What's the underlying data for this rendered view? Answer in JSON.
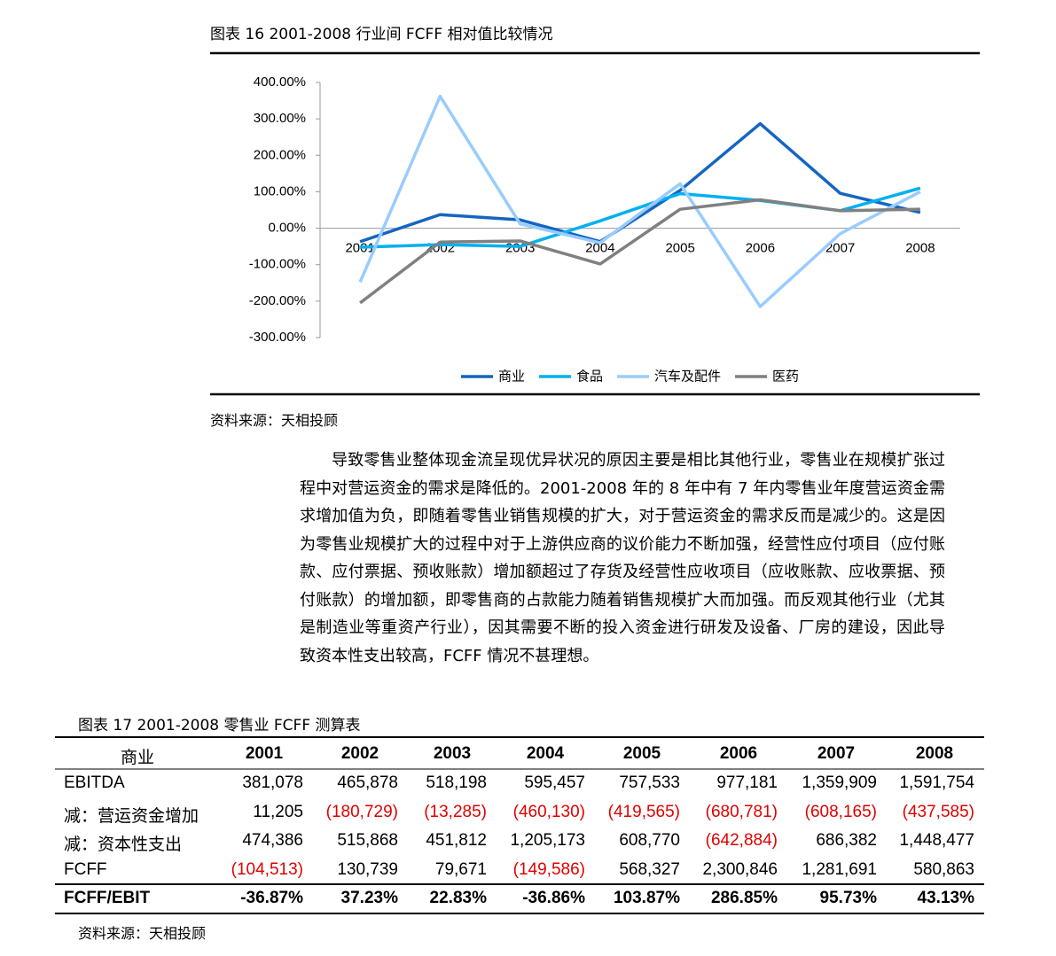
{
  "figure16": {
    "title": "图表 16 2001-2008 行业间 FCFF 相对值比较情况",
    "source": "资料来源：天相投顾"
  },
  "chart_data": {
    "type": "line",
    "categories": [
      "2001",
      "2002",
      "2003",
      "2004",
      "2005",
      "2006",
      "2007",
      "2008"
    ],
    "ylim": [
      -300,
      400
    ],
    "yticks": [
      {
        "value": 400,
        "label": "400.00%"
      },
      {
        "value": 300,
        "label": "300.00%"
      },
      {
        "value": 200,
        "label": "200.00%"
      },
      {
        "value": 100,
        "label": "100.00%"
      },
      {
        "value": 0,
        "label": "0.00%"
      },
      {
        "value": -100,
        "label": "-100.00%"
      },
      {
        "value": -200,
        "label": "-200.00%"
      },
      {
        "value": -300,
        "label": "-300.00%"
      }
    ],
    "grid": false,
    "legend": "bottom",
    "series": [
      {
        "name": "商业",
        "color": "#1565c0",
        "values": [
          -36.87,
          37.23,
          22.83,
          -36.86,
          103.87,
          286.85,
          95.73,
          43.13
        ]
      },
      {
        "name": "食品",
        "color": "#00b0f0",
        "values": [
          -52,
          -45,
          -50,
          20,
          95,
          76,
          48,
          110
        ]
      },
      {
        "name": "汽车及配件",
        "color": "#99ccff",
        "values": [
          -148,
          362,
          12,
          -40,
          122,
          -215,
          -15,
          100
        ]
      },
      {
        "name": "医药",
        "color": "#808080",
        "values": [
          -205,
          -38,
          -35,
          -98,
          52,
          78,
          48,
          52
        ]
      }
    ]
  },
  "paragraph": "导致零售业整体现金流呈现优异状况的原因主要是相比其他行业，零售业在规模扩张过程中对营运资金的需求是降低的。2001-2008 年的 8 年中有 7 年内零售业年度营运资金需求增加值为负，即随着零售业销售规模的扩大，对于营运资金的需求反而是减少的。这是因为零售业规模扩大的过程中对于上游供应商的议价能力不断加强，经营性应付项目（应付账款、应付票据、预收账款）增加额超过了存货及经营性应收项目（应收账款、应收票据、预付账款）的增加额，即零售商的占款能力随着销售规模扩大而加强。而反观其他行业（尤其是制造业等重资产行业），因其需要不断的投入资金进行研发及设备、厂房的建设，因此导致资本性支出较高，FCFF 情况不甚理想。",
  "figure17": {
    "title": "图表 17 2001-2008 零售业 FCFF 测算表",
    "source": "资料来源：天相投顾"
  },
  "table": {
    "header": [
      "商业",
      "2001",
      "2002",
      "2003",
      "2004",
      "2005",
      "2006",
      "2007",
      "2008"
    ],
    "rows": [
      [
        "EBITDA",
        "381,078",
        "465,878",
        "518,198",
        "595,457",
        "757,533",
        "977,181",
        "1,359,909",
        "1,591,754"
      ],
      [
        "减：营运资金增加",
        "11,205",
        "(180,729)",
        "(13,285)",
        "(460,130)",
        "(419,565)",
        "(680,781)",
        "(608,165)",
        "(437,585)"
      ],
      [
        "减：资本性支出",
        "474,386",
        "515,868",
        "451,812",
        "1,205,173",
        "608,770",
        "(642,884)",
        "686,382",
        "1,448,477"
      ],
      [
        "FCFF",
        "(104,513)",
        "130,739",
        "79,671",
        "(149,586)",
        "568,327",
        "2,300,846",
        "1,281,691",
        "580,863"
      ],
      [
        "FCFF/EBIT",
        "-36.87%",
        "37.23%",
        "22.83%",
        "-36.86%",
        "103.87%",
        "286.85%",
        "95.73%",
        "43.13%"
      ]
    ]
  }
}
